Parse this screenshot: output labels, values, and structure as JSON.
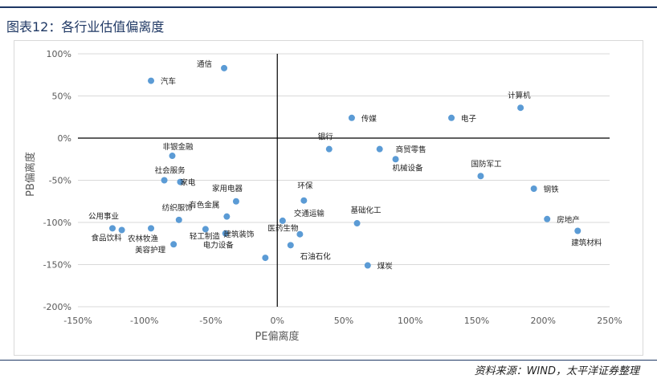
{
  "header": {
    "title": "图表12：各行业估值偏离度"
  },
  "footer": {
    "source": "资料来源：WIND，太平洋证券整理"
  },
  "chart_data": {
    "type": "scatter",
    "xlabel": "PE偏离度",
    "ylabel": "PB偏离度",
    "xlim": [
      -150,
      250
    ],
    "ylim": [
      -200,
      100
    ],
    "x_ticks": [
      -150,
      -100,
      -50,
      0,
      50,
      100,
      150,
      200,
      250
    ],
    "x_tick_labels": [
      "-150%",
      "-100%",
      "-50%",
      "0%",
      "50%",
      "100%",
      "150%",
      "200%",
      "250%"
    ],
    "y_ticks": [
      100,
      50,
      0,
      -50,
      -100,
      -150,
      -200
    ],
    "y_tick_labels": [
      "100%",
      "50%",
      "0%",
      "-50%",
      "-100%",
      "-150%",
      "-200%"
    ],
    "grid": "horizontal",
    "point_color": "#5b9bd5",
    "points": [
      {
        "name": "通信",
        "x": -40,
        "y": 83
      },
      {
        "name": "汽车",
        "x": -95,
        "y": 68
      },
      {
        "name": "传媒",
        "x": 56,
        "y": 24
      },
      {
        "name": "电子",
        "x": 131,
        "y": 24
      },
      {
        "name": "计算机",
        "x": 183,
        "y": 36
      },
      {
        "name": "银行",
        "x": 39,
        "y": -13
      },
      {
        "name": "商贸零售",
        "x": 77,
        "y": -13
      },
      {
        "name": "机械设备",
        "x": 89,
        "y": -25
      },
      {
        "name": "国防军工",
        "x": 153,
        "y": -45
      },
      {
        "name": "钢铁",
        "x": 193,
        "y": -60
      },
      {
        "name": "房地产",
        "x": 203,
        "y": -96
      },
      {
        "name": "建筑材料",
        "x": 226,
        "y": -110
      },
      {
        "name": "非银金融",
        "x": -79,
        "y": -21
      },
      {
        "name": "社会服务",
        "x": -85,
        "y": -50
      },
      {
        "name": "家电",
        "x": -73,
        "y": -52
      },
      {
        "name": "家用电器",
        "x": -31,
        "y": -75
      },
      {
        "name": "纺织服饰",
        "x": -74,
        "y": -97
      },
      {
        "name": "有色金属",
        "x": -38,
        "y": -93
      },
      {
        "name": "环保",
        "x": 20,
        "y": -74
      },
      {
        "name": "交通运输",
        "x": 4,
        "y": -98
      },
      {
        "name": "基础化工",
        "x": 60,
        "y": -101
      },
      {
        "name": "公用事业",
        "x": -124,
        "y": -107
      },
      {
        "name": "食品饮料",
        "x": -117,
        "y": -109
      },
      {
        "name": "农林牧渔",
        "x": -95,
        "y": -107
      },
      {
        "name": "美容护理",
        "x": -78,
        "y": -126
      },
      {
        "name": "轻工制造",
        "x": -54,
        "y": -108
      },
      {
        "name": "电力设备",
        "x": -39,
        "y": -113
      },
      {
        "name": "建筑装饰",
        "x": -9,
        "y": -142
      },
      {
        "name": "医药生物",
        "x": 17,
        "y": -114
      },
      {
        "name": "石油石化",
        "x": 10,
        "y": -127
      },
      {
        "name": "煤炭",
        "x": 68,
        "y": -151
      }
    ]
  }
}
